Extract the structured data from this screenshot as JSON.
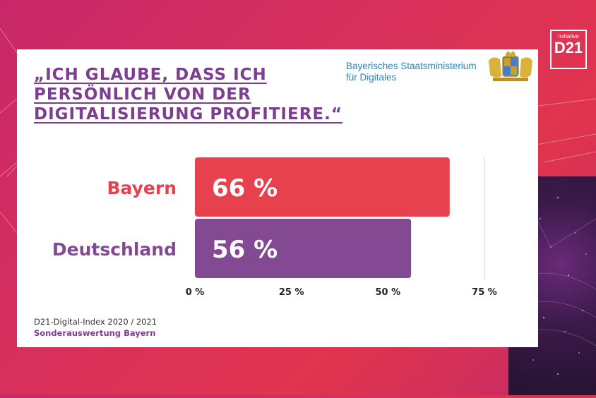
{
  "header": {
    "title_lines": [
      "„ICH GLAUBE, DASS ICH",
      "PERSÖNLICH VON DER",
      "DIGITALISIERUNG PROFITIERE.“"
    ],
    "ministry_lines": [
      "Bayerisches Staatsministerium",
      "für Digitales"
    ],
    "logo_small": "Initiative",
    "logo_big": "D21"
  },
  "footer": {
    "source": "D21-Digital-Index 2020 / 2021",
    "subtitle": "Sonderauswertung Bayern"
  },
  "colors": {
    "bayern": "#e8414e",
    "deutschland": "#834a93",
    "title": "#7b3e90",
    "ministry": "#1f88c4"
  },
  "chart_data": {
    "type": "bar",
    "orientation": "horizontal",
    "categories": [
      "Bayern",
      "Deutschland"
    ],
    "values": [
      66,
      56
    ],
    "value_labels": [
      "66 %",
      "56 %"
    ],
    "xlim": [
      0,
      75
    ],
    "ticks": [
      0,
      25,
      50,
      75
    ],
    "tick_labels": [
      "0 %",
      "25 %",
      "50 %",
      "75 %"
    ],
    "title": "„ICH GLAUBE, DASS ICH PERSÖNLICH VON DER DIGITALISIERUNG PROFITIERE.“"
  }
}
